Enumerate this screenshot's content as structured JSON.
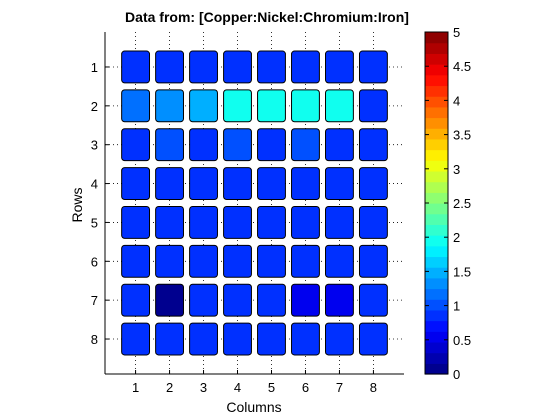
{
  "chart_data": {
    "type": "heatmap",
    "title": "Data from: [Copper:Nickel:Chromium:Iron]",
    "xlabel": "Columns",
    "ylabel": "Rows",
    "x_ticks": [
      "1",
      "2",
      "3",
      "4",
      "5",
      "6",
      "7",
      "8"
    ],
    "y_ticks": [
      "1",
      "2",
      "3",
      "4",
      "5",
      "6",
      "7",
      "8"
    ],
    "values": [
      [
        0.8,
        0.8,
        0.8,
        0.8,
        0.8,
        0.8,
        0.8,
        0.8
      ],
      [
        1.15,
        1.3,
        1.45,
        2.0,
        2.0,
        2.0,
        2.0,
        0.8
      ],
      [
        0.8,
        0.95,
        0.8,
        0.95,
        0.8,
        0.95,
        0.8,
        0.8
      ],
      [
        0.8,
        0.8,
        0.8,
        0.8,
        0.8,
        0.8,
        0.8,
        0.8
      ],
      [
        0.8,
        0.8,
        0.8,
        0.8,
        0.8,
        0.8,
        0.8,
        0.8
      ],
      [
        0.8,
        0.8,
        0.8,
        0.8,
        0.8,
        0.8,
        0.8,
        0.8
      ],
      [
        0.8,
        0.15,
        0.8,
        0.8,
        0.8,
        0.6,
        0.6,
        0.8
      ],
      [
        0.8,
        0.8,
        0.8,
        0.8,
        0.8,
        0.8,
        0.8,
        0.8
      ]
    ],
    "colorbar": {
      "range": [
        0,
        5
      ],
      "ticks": [
        "0",
        "0.5",
        "1",
        "1.5",
        "2",
        "2.5",
        "3",
        "3.5",
        "4",
        "4.5",
        "5"
      ],
      "colormap": "jet",
      "levels": 32
    },
    "grid": true
  }
}
